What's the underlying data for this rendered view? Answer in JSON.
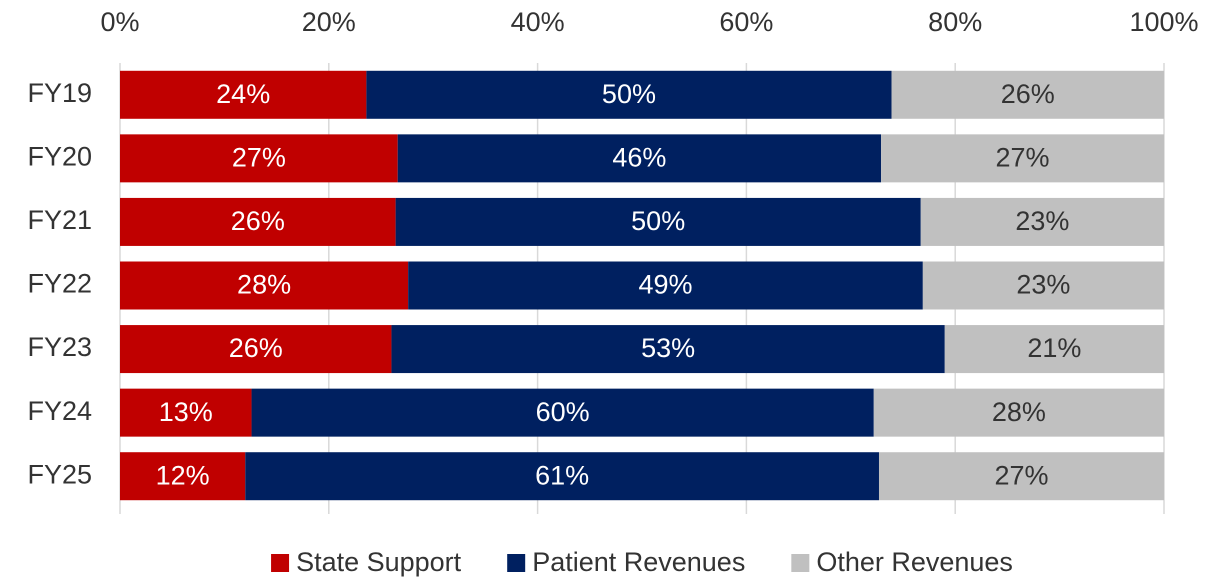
{
  "chart_data": {
    "type": "bar",
    "orientation": "horizontal",
    "stacked": true,
    "categories": [
      "FY19",
      "FY20",
      "FY21",
      "FY22",
      "FY23",
      "FY24",
      "FY25"
    ],
    "series": [
      {
        "name": "State Support",
        "color": "#c00000",
        "label_color": "#ffffff",
        "values": [
          23.6,
          26.6,
          26.4,
          27.6,
          26.0,
          12.6,
          12.0
        ],
        "value_labels": [
          "24%",
          "27%",
          "26%",
          "28%",
          "26%",
          "13%",
          "12%"
        ]
      },
      {
        "name": "Patient Revenues",
        "color": "#002060",
        "label_color": "#ffffff",
        "values": [
          50.3,
          46.3,
          50.3,
          49.3,
          53.0,
          59.6,
          60.7
        ],
        "value_labels": [
          "50%",
          "46%",
          "50%",
          "49%",
          "53%",
          "60%",
          "61%"
        ]
      },
      {
        "name": "Other Revenues",
        "color": "#c0c0c0",
        "label_color": "#333333",
        "values": [
          26.1,
          27.1,
          23.3,
          23.1,
          21.0,
          27.8,
          27.3
        ],
        "value_labels": [
          "26%",
          "27%",
          "23%",
          "23%",
          "21%",
          "28%",
          "27%"
        ]
      }
    ],
    "xlim": [
      0,
      100
    ],
    "xticks": [
      {
        "value": 0,
        "label": "0%"
      },
      {
        "value": 20,
        "label": "20%"
      },
      {
        "value": 40,
        "label": "40%"
      },
      {
        "value": 60,
        "label": "60%"
      },
      {
        "value": 80,
        "label": "80%"
      },
      {
        "value": 100,
        "label": "100%"
      }
    ],
    "grid": true,
    "legend": "bottom"
  }
}
